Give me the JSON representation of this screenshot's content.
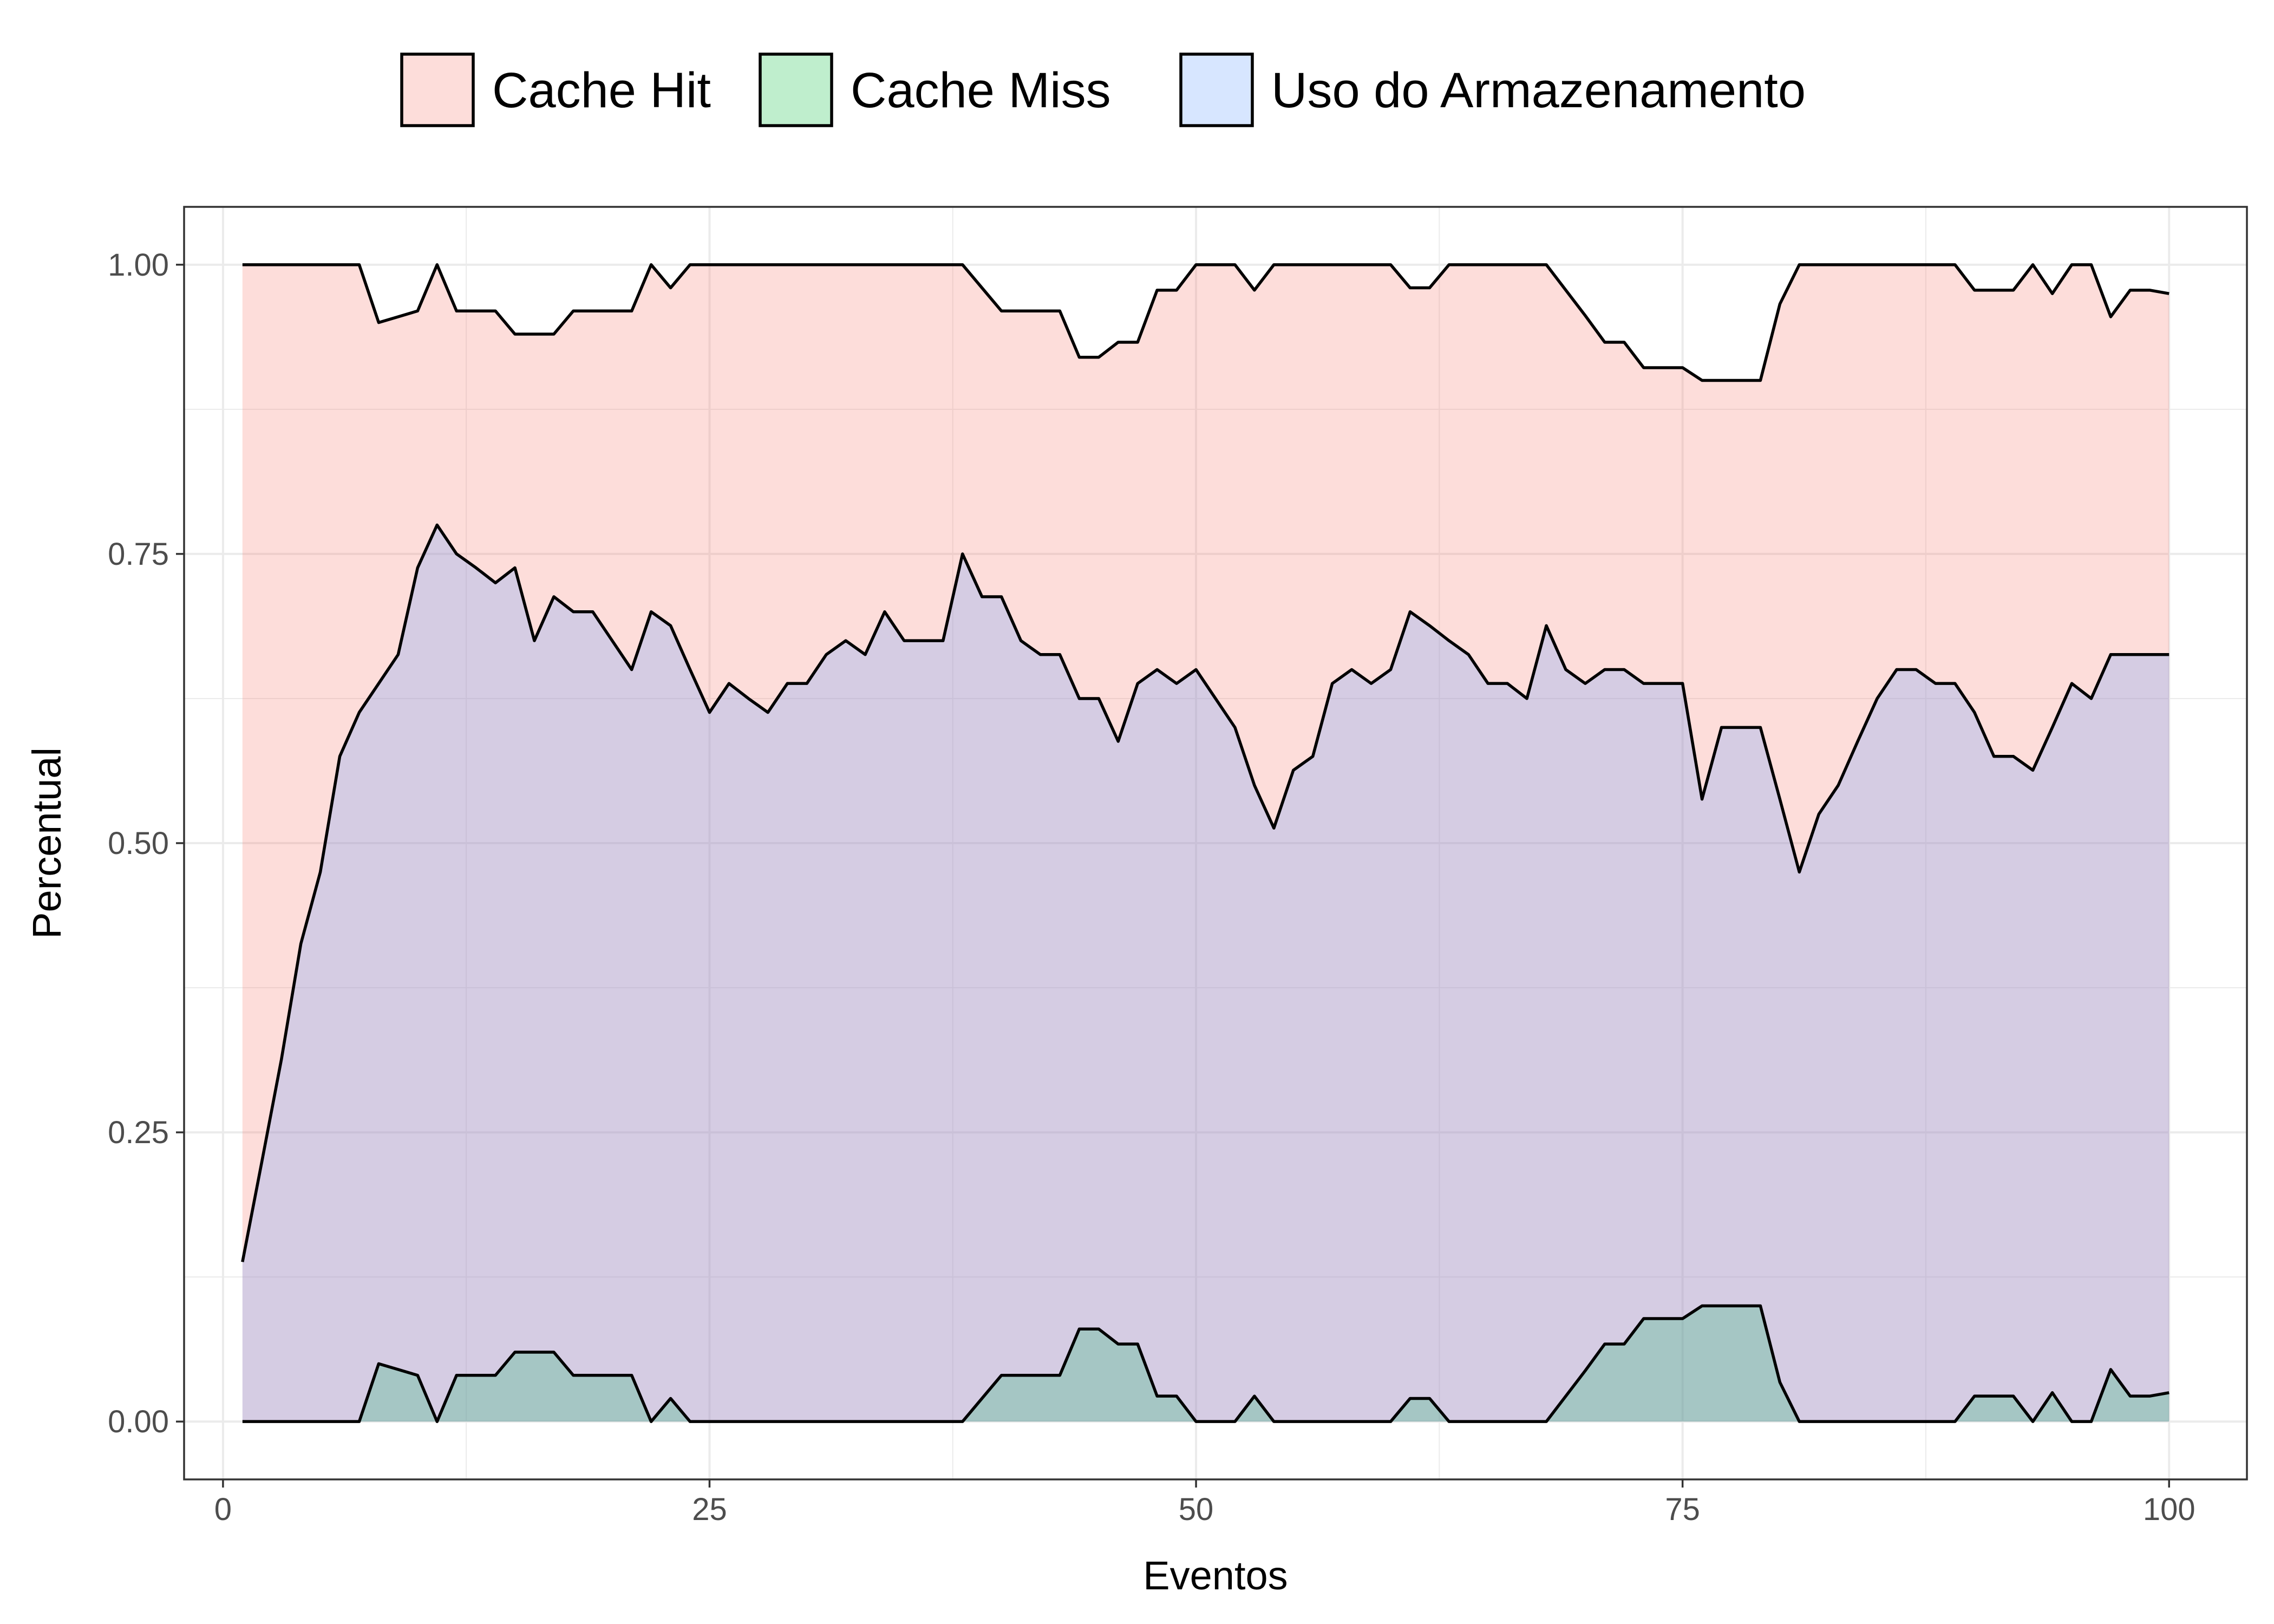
{
  "chart_data": {
    "type": "area",
    "xlabel": "Eventos",
    "ylabel": "Percentual",
    "xlim": [
      -2,
      104
    ],
    "ylim": [
      -0.05,
      1.05
    ],
    "x_ticks": [
      0,
      25,
      50,
      75,
      100
    ],
    "x_tick_labels": [
      "0",
      "25",
      "50",
      "75",
      "100"
    ],
    "y_ticks": [
      0,
      0.25,
      0.5,
      0.75,
      1.0
    ],
    "y_tick_labels": [
      "0.00",
      "0.25",
      "0.50",
      "0.75",
      "1.00"
    ],
    "grid": true,
    "legend_position": "top",
    "x": [
      1,
      2,
      3,
      4,
      5,
      6,
      7,
      8,
      9,
      10,
      11,
      12,
      13,
      14,
      15,
      16,
      17,
      18,
      19,
      20,
      21,
      22,
      23,
      24,
      25,
      26,
      27,
      28,
      29,
      30,
      31,
      32,
      33,
      34,
      35,
      36,
      37,
      38,
      39,
      40,
      41,
      42,
      43,
      44,
      45,
      46,
      47,
      48,
      49,
      50,
      51,
      52,
      53,
      54,
      55,
      56,
      57,
      58,
      59,
      60,
      61,
      62,
      63,
      64,
      65,
      66,
      67,
      68,
      69,
      70,
      71,
      72,
      73,
      74,
      75,
      76,
      77,
      78,
      79,
      80,
      81,
      82,
      83,
      84,
      85,
      86,
      87,
      88,
      89,
      90,
      91,
      92,
      93,
      94,
      95,
      96,
      97,
      98,
      99,
      100
    ],
    "series": [
      {
        "name": "Cache Hit",
        "color": "#F8766D",
        "values": [
          1.0,
          1.0,
          1.0,
          1.0,
          1.0,
          1.0,
          1.0,
          0.95,
          0.955,
          0.96,
          1.0,
          0.96,
          0.96,
          0.96,
          0.94,
          0.94,
          0.94,
          0.96,
          0.96,
          0.96,
          0.96,
          1.0,
          0.98,
          1.0,
          1.0,
          1.0,
          1.0,
          1.0,
          1.0,
          1.0,
          1.0,
          1.0,
          1.0,
          1.0,
          1.0,
          1.0,
          1.0,
          1.0,
          0.98,
          0.96,
          0.96,
          0.96,
          0.96,
          0.92,
          0.92,
          0.933,
          0.933,
          0.978,
          0.978,
          1.0,
          1.0,
          1.0,
          0.978,
          1.0,
          1.0,
          1.0,
          1.0,
          1.0,
          1.0,
          1.0,
          0.98,
          0.98,
          1.0,
          1.0,
          1.0,
          1.0,
          1.0,
          1.0,
          0.978,
          0.956,
          0.933,
          0.933,
          0.911,
          0.911,
          0.911,
          0.9,
          0.9,
          0.9,
          0.9,
          0.966,
          1.0,
          1.0,
          1.0,
          1.0,
          1.0,
          1.0,
          1.0,
          1.0,
          1.0,
          0.978,
          0.978,
          0.978,
          1.0,
          0.975,
          1.0,
          1.0,
          0.955,
          0.978,
          0.978,
          0.975
        ]
      },
      {
        "name": "Cache Miss",
        "color": "#00BA38",
        "values": [
          0.0,
          0.0,
          0.0,
          0.0,
          0.0,
          0.0,
          0.0,
          0.05,
          0.045,
          0.04,
          0.0,
          0.04,
          0.04,
          0.04,
          0.06,
          0.06,
          0.06,
          0.04,
          0.04,
          0.04,
          0.04,
          0.0,
          0.02,
          0.0,
          0.0,
          0.0,
          0.0,
          0.0,
          0.0,
          0.0,
          0.0,
          0.0,
          0.0,
          0.0,
          0.0,
          0.0,
          0.0,
          0.0,
          0.02,
          0.04,
          0.04,
          0.04,
          0.04,
          0.08,
          0.08,
          0.067,
          0.067,
          0.022,
          0.022,
          0.0,
          0.0,
          0.0,
          0.022,
          0.0,
          0.0,
          0.0,
          0.0,
          0.0,
          0.0,
          0.0,
          0.02,
          0.02,
          0.0,
          0.0,
          0.0,
          0.0,
          0.0,
          0.0,
          0.022,
          0.044,
          0.067,
          0.067,
          0.089,
          0.089,
          0.089,
          0.1,
          0.1,
          0.1,
          0.1,
          0.034,
          0.0,
          0.0,
          0.0,
          0.0,
          0.0,
          0.0,
          0.0,
          0.0,
          0.0,
          0.022,
          0.022,
          0.022,
          0.0,
          0.025,
          0.0,
          0.0,
          0.045,
          0.022,
          0.022,
          0.025
        ]
      },
      {
        "name": "Uso do Armazenamento",
        "color": "#619CFF",
        "values": [
          0.138,
          0.225,
          0.313,
          0.413,
          0.475,
          0.575,
          0.613,
          0.638,
          0.663,
          0.738,
          0.775,
          0.75,
          0.738,
          0.725,
          0.738,
          0.675,
          0.713,
          0.7,
          0.7,
          0.675,
          0.65,
          0.7,
          0.688,
          0.65,
          0.613,
          0.638,
          0.625,
          0.613,
          0.638,
          0.638,
          0.663,
          0.675,
          0.663,
          0.7,
          0.675,
          0.675,
          0.675,
          0.75,
          0.713,
          0.713,
          0.675,
          0.663,
          0.663,
          0.625,
          0.625,
          0.588,
          0.638,
          0.65,
          0.638,
          0.65,
          0.625,
          0.6,
          0.55,
          0.513,
          0.563,
          0.575,
          0.638,
          0.65,
          0.638,
          0.65,
          0.7,
          0.688,
          0.675,
          0.663,
          0.638,
          0.638,
          0.625,
          0.688,
          0.65,
          0.638,
          0.65,
          0.65,
          0.638,
          0.638,
          0.638,
          0.538,
          0.6,
          0.6,
          0.6,
          0.538,
          0.475,
          0.525,
          0.55,
          0.588,
          0.625,
          0.65,
          0.65,
          0.638,
          0.638,
          0.613,
          0.575,
          0.575,
          0.563,
          0.6,
          0.638,
          0.625,
          0.663,
          0.663,
          0.663,
          0.663
        ]
      }
    ]
  }
}
